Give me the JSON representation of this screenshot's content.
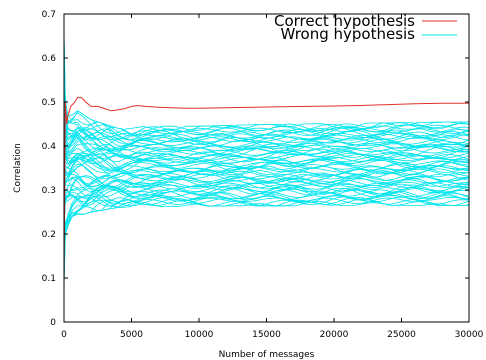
{
  "chart_data": {
    "type": "line",
    "xlabel": "Number of messages",
    "ylabel": "Correlation",
    "xlim": [
      0,
      30000
    ],
    "ylim": [
      0,
      0.7
    ],
    "xticks": [
      0,
      5000,
      10000,
      15000,
      20000,
      25000,
      30000
    ],
    "yticks": [
      0,
      0.1,
      0.2,
      0.3,
      0.4,
      0.5,
      0.6,
      0.7
    ],
    "grid": false,
    "legend_position": "top-right",
    "colors": {
      "correct": "#e0302a",
      "wrong": "#00e5ee"
    },
    "series": [
      {
        "name": "Correct hypothesis",
        "x": [
          0,
          100,
          200,
          300,
          500,
          800,
          1000,
          1300,
          1600,
          2000,
          2500,
          3000,
          3500,
          4000,
          4500,
          5000,
          5500,
          6000,
          7000,
          8000,
          9000,
          10000,
          12000,
          14000,
          16000,
          18000,
          20000,
          22000,
          24000,
          26000,
          28000,
          30000
        ],
        "values": [
          0.08,
          0.5,
          0.45,
          0.47,
          0.49,
          0.5,
          0.51,
          0.51,
          0.5,
          0.49,
          0.49,
          0.485,
          0.48,
          0.482,
          0.485,
          0.49,
          0.492,
          0.49,
          0.488,
          0.487,
          0.486,
          0.486,
          0.487,
          0.488,
          0.489,
          0.49,
          0.491,
          0.492,
          0.494,
          0.496,
          0.497,
          0.497
        ]
      },
      {
        "name": "Wrong hypothesis",
        "x": [
          0,
          100,
          300,
          600,
          1000,
          1500,
          2000,
          3000,
          4000,
          5000,
          6000,
          8000,
          10000,
          12500,
          15000,
          17500,
          20000,
          22500,
          25000,
          27500,
          30000
        ],
        "band_upper": [
          0.66,
          0.5,
          0.47,
          0.47,
          0.48,
          0.47,
          0.46,
          0.45,
          0.44,
          0.44,
          0.445,
          0.445,
          0.445,
          0.447,
          0.449,
          0.45,
          0.451,
          0.452,
          0.453,
          0.454,
          0.455
        ],
        "band_lower": [
          0.08,
          0.2,
          0.22,
          0.24,
          0.245,
          0.245,
          0.25,
          0.255,
          0.26,
          0.262,
          0.263,
          0.263,
          0.263,
          0.264,
          0.264,
          0.264,
          0.265,
          0.265,
          0.265,
          0.265,
          0.265
        ]
      }
    ]
  }
}
